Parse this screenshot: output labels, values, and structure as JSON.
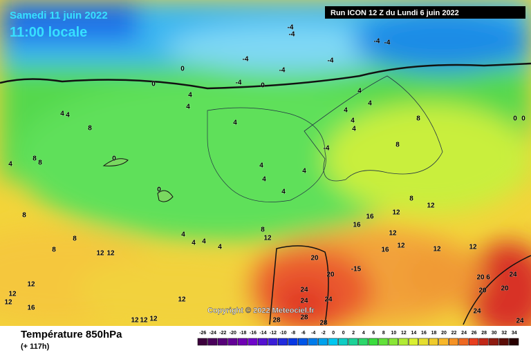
{
  "header": {
    "date": "Samedi 11 juin 2022",
    "time": "11:00 locale",
    "run": "Run ICON 12 Z du Lundi 6 juin 2022"
  },
  "copyright": "Copyright © 2022 Meteociel.fr",
  "footer": {
    "title": "Température 850hPa",
    "lead": "(+ 117h)"
  },
  "scale": {
    "labels": [
      "-26",
      "-24",
      "-22",
      "-20",
      "-18",
      "-16",
      "-14",
      "-12",
      "-10",
      "-8",
      "-6",
      "-4",
      "-2",
      "0",
      "0",
      "2",
      "4",
      "6",
      "8",
      "10",
      "12",
      "14",
      "16",
      "18",
      "20",
      "22",
      "24",
      "26",
      "28",
      "30",
      "32",
      "34"
    ]
  },
  "contour_labels": [
    "-4",
    "-4",
    "-4",
    "-4",
    "-4",
    "-4",
    "-4",
    "0",
    "0",
    "0",
    "-4",
    "4",
    "4",
    "4",
    "4",
    "8",
    "4",
    "4",
    "4",
    "4",
    "4",
    "4",
    "8",
    "8",
    "0",
    "0",
    "-4",
    "0",
    "8",
    "8",
    "4",
    "0",
    "4",
    "4",
    "4",
    "4",
    "8",
    "8",
    "12",
    "12",
    "16",
    "16",
    "12",
    "12",
    "16",
    "12",
    "12",
    "4",
    "4",
    "4",
    "4",
    "8",
    "12",
    "8",
    "8",
    "12",
    "12",
    "20",
    "20",
    "-15",
    "12",
    "12",
    "12",
    "16",
    "12",
    "24",
    "24",
    "24",
    "20",
    "6",
    "24",
    "20",
    "20",
    "24",
    "24",
    "12",
    "12",
    "12",
    "28",
    "28",
    "28"
  ]
}
